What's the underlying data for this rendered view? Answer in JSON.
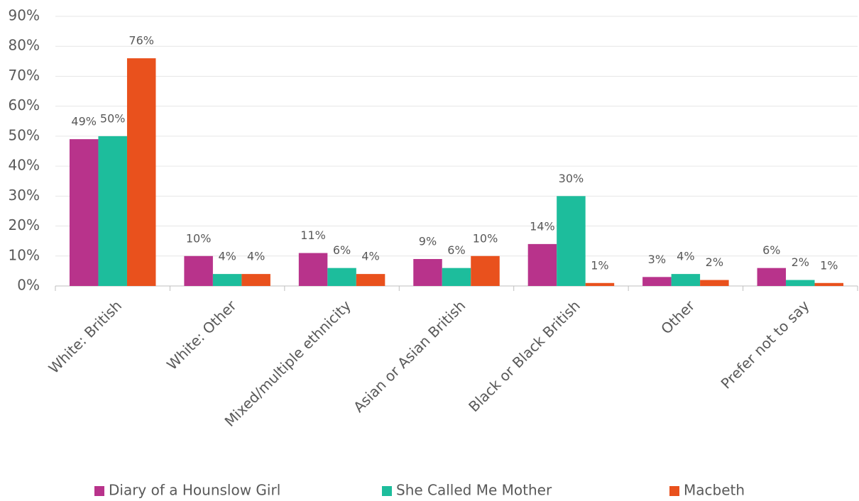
{
  "chart_data": {
    "type": "bar",
    "categories": [
      "White: British",
      "White: Other",
      "Mixed/multiple ethnicity",
      "Asian or Asian British",
      "Black or Black British",
      "Other",
      "Prefer not to say"
    ],
    "series": [
      {
        "name": "Diary of a Hounslow Girl",
        "color": "#b8338b",
        "values": [
          49,
          10,
          11,
          9,
          14,
          3,
          6
        ],
        "value_labels": [
          "49%",
          "10%",
          "11%",
          "9%",
          "14%",
          "3%",
          "6%"
        ]
      },
      {
        "name": "She Called Me Mother",
        "color": "#1dbd9c",
        "values": [
          50,
          4,
          6,
          6,
          30,
          4,
          2
        ],
        "value_labels": [
          "50%",
          "4%",
          "6%",
          "6%",
          "30%",
          "4%",
          "2%"
        ]
      },
      {
        "name": "Macbeth",
        "color": "#e9511d",
        "values": [
          76,
          4,
          4,
          10,
          1,
          2,
          1
        ],
        "value_labels": [
          "76%",
          "4%",
          "4%",
          "10%",
          "1%",
          "2%",
          "1%"
        ]
      }
    ],
    "ylim": [
      0,
      90
    ],
    "yticks": [
      {
        "value": 0,
        "label": "0%"
      },
      {
        "value": 10,
        "label": "10%"
      },
      {
        "value": 20,
        "label": "20%"
      },
      {
        "value": 30,
        "label": "30%"
      },
      {
        "value": 40,
        "label": "40%"
      },
      {
        "value": 50,
        "label": "50%"
      },
      {
        "value": 60,
        "label": "60%"
      },
      {
        "value": 70,
        "label": "70%"
      },
      {
        "value": 80,
        "label": "80%"
      },
      {
        "value": 90,
        "label": "90%"
      }
    ],
    "grid": true,
    "legend": "bottom"
  }
}
